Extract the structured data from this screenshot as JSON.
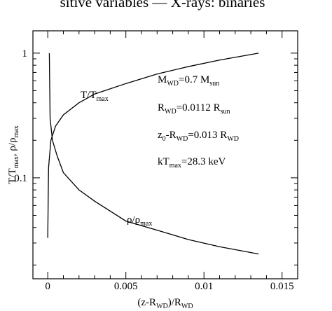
{
  "caption_fragment": "sitive variables — X-rays: binaries",
  "chart_data": {
    "type": "line",
    "yscale": "log",
    "xlabel": [
      "(z-R",
      "WD",
      ")/R",
      "WD"
    ],
    "ylabel": [
      "T/T",
      "max",
      ", ρ/ρ",
      "max"
    ],
    "xlim": [
      -0.00095,
      0.016
    ],
    "ylim": [
      0.0155,
      1.51
    ],
    "xticks": [
      0,
      0.005,
      0.01,
      0.015
    ],
    "xminor": [
      0.001,
      0.002,
      0.003,
      0.004,
      0.006,
      0.007,
      0.008,
      0.009,
      0.011,
      0.012,
      0.013,
      0.014
    ],
    "yticks": [
      1,
      0.1
    ],
    "yminor": [
      0.02,
      0.03,
      0.04,
      0.05,
      0.06,
      0.07,
      0.08,
      0.09,
      0.2,
      0.3,
      0.4,
      0.5,
      0.6,
      0.7,
      0.8,
      0.9
    ],
    "color": "#000000",
    "series": [
      {
        "name": [
          "T/T",
          "max"
        ],
        "x": [
          0,
          5e-05,
          0.0002,
          0.0005,
          0.001,
          0.002,
          0.003,
          0.005,
          0.007,
          0.009,
          0.011,
          0.0135
        ],
        "values": [
          0.033,
          0.12,
          0.2,
          0.26,
          0.32,
          0.4,
          0.47,
          0.57,
          0.68,
          0.78,
          0.88,
          1.0
        ]
      },
      {
        "name": [
          "ρ/ρ",
          "max"
        ],
        "x": [
          0.0001,
          0.00015,
          0.0003,
          0.0006,
          0.001,
          0.002,
          0.003,
          0.005,
          0.007,
          0.009,
          0.011,
          0.0135
        ],
        "values": [
          1,
          0.3,
          0.2,
          0.15,
          0.11,
          0.08,
          0.065,
          0.045,
          0.038,
          0.032,
          0.028,
          0.0245
        ]
      }
    ],
    "annotations": [
      [
        "M",
        "WD",
        "=0.7 M",
        "sun"
      ],
      [
        "R",
        "WD",
        "=0.0112 R",
        "sun"
      ],
      [
        "z",
        "0",
        "-R",
        "WD",
        "=0.013 R",
        "WD"
      ],
      [
        "kT",
        "max",
        "=28.3 keV"
      ]
    ]
  }
}
